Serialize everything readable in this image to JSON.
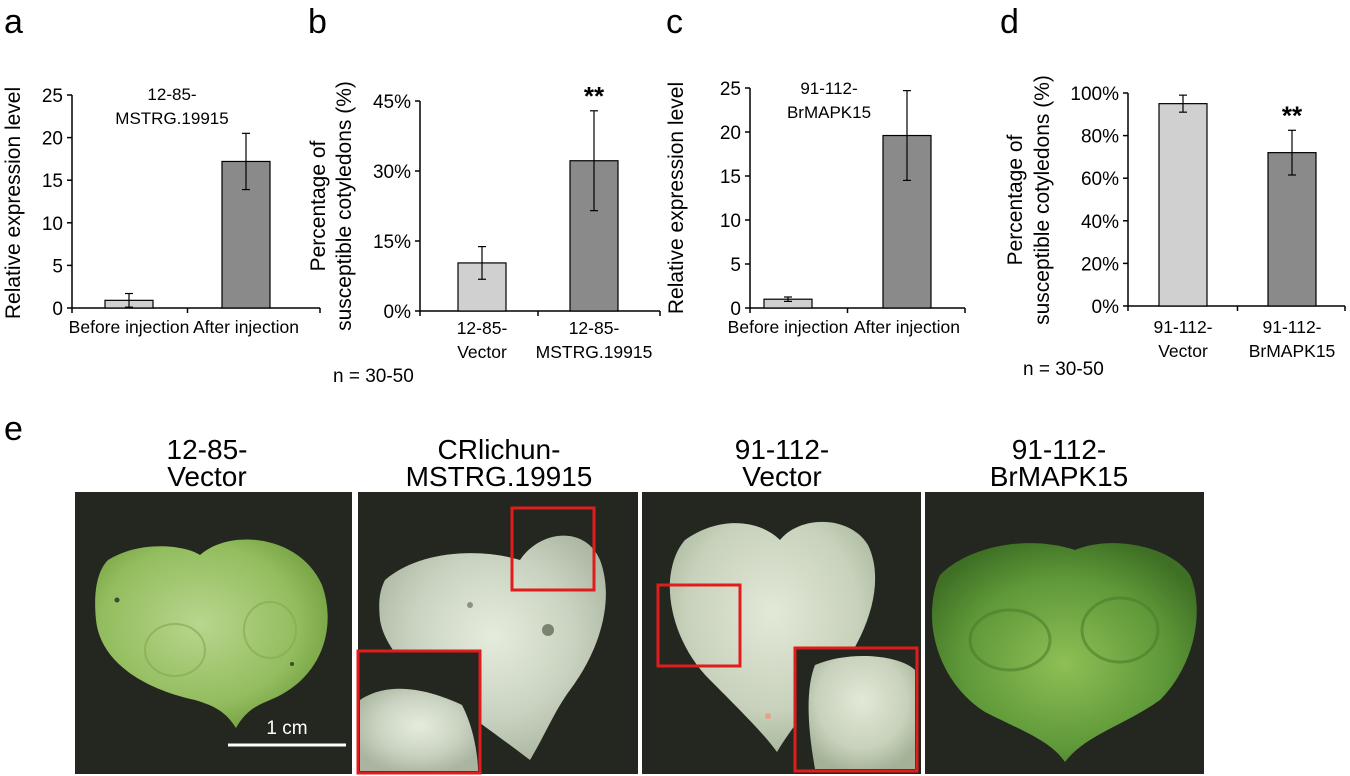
{
  "chart_data": [
    {
      "panel": "a",
      "type": "bar",
      "annotation": [
        "12-85-",
        "MSTRG.19915"
      ],
      "ylabel": "Relative expression level",
      "categories": [
        [
          "Before injection"
        ],
        [
          "After injection"
        ]
      ],
      "values": [
        0.9,
        17.2
      ],
      "errors": [
        0.8,
        3.3
      ],
      "ylim": [
        0,
        25
      ],
      "yticks": [
        "0",
        "5",
        "10",
        "15",
        "20",
        "25"
      ],
      "bar_colors": [
        "#d0d0d0",
        "#8a8a8a"
      ],
      "significance": [
        "",
        ""
      ],
      "n_note": ""
    },
    {
      "panel": "b",
      "type": "bar",
      "annotation": [],
      "ylabel": [
        "Percentage of",
        "susceptible cotyledons (%)"
      ],
      "categories": [
        [
          "12-85-",
          "Vector"
        ],
        [
          "12-85-",
          "MSTRG.19915"
        ]
      ],
      "values": [
        10.3,
        32.2
      ],
      "errors": [
        3.5,
        10.7
      ],
      "ylim": [
        0,
        45
      ],
      "yticks": [
        "0%",
        "15%",
        "30%",
        "45%"
      ],
      "bar_colors": [
        "#d0d0d0",
        "#8a8a8a"
      ],
      "significance": [
        "",
        "**"
      ],
      "n_note": "n = 30-50"
    },
    {
      "panel": "c",
      "type": "bar",
      "annotation": [
        "91-112-",
        "BrMAPK15"
      ],
      "ylabel": "Relative expression level",
      "categories": [
        [
          "Before injection"
        ],
        [
          "After injection"
        ]
      ],
      "values": [
        1.0,
        19.6
      ],
      "errors": [
        0.25,
        5.1
      ],
      "ylim": [
        0,
        25
      ],
      "yticks": [
        "0",
        "5",
        "10",
        "15",
        "20",
        "25"
      ],
      "bar_colors": [
        "#d0d0d0",
        "#8a8a8a"
      ],
      "significance": [
        "",
        ""
      ],
      "n_note": ""
    },
    {
      "panel": "d",
      "type": "bar",
      "annotation": [],
      "ylabel": [
        "Percentage of",
        "susceptible cotyledons (%)"
      ],
      "categories": [
        [
          "91-112-",
          "Vector"
        ],
        [
          "91-112-",
          "BrMAPK15"
        ]
      ],
      "values": [
        95,
        72
      ],
      "errors": [
        4,
        10.5
      ],
      "ylim": [
        0,
        100
      ],
      "yticks": [
        "0%",
        "20%",
        "40%",
        "60%",
        "80%",
        "100%"
      ],
      "bar_colors": [
        "#d0d0d0",
        "#8a8a8a"
      ],
      "significance": [
        "",
        "**"
      ],
      "n_note": "n = 30-50"
    }
  ],
  "photos": {
    "panel": "e",
    "titles": [
      [
        "12-85-",
        "Vector"
      ],
      [
        "CRlichun-",
        "MSTRG.19915"
      ],
      [
        "91-112-",
        "Vector"
      ],
      [
        "91-112-",
        "BrMAPK15"
      ]
    ],
    "scale_bar": "1 cm"
  }
}
